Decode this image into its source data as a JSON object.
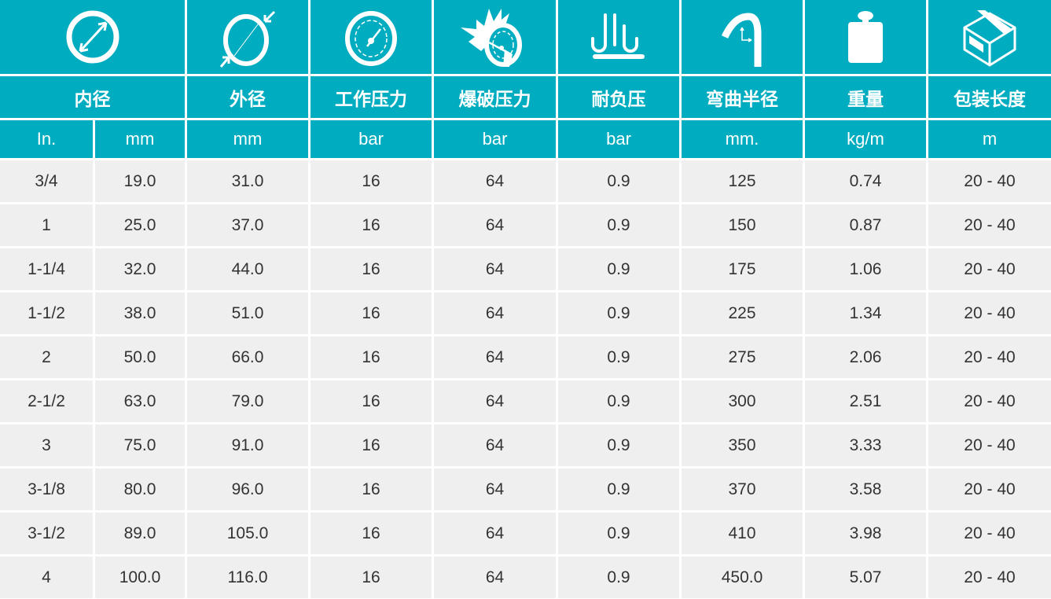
{
  "colors": {
    "header": "#00adc0",
    "row": "#efefef",
    "text": "#333333"
  },
  "icons": [
    "inner-diameter-icon",
    "outer-diameter-icon",
    "pressure-gauge-icon",
    "burst-gauge-icon",
    "vacuum-icon",
    "bend-radius-icon",
    "weight-icon",
    "package-box-icon"
  ],
  "headers": [
    "内径",
    "外径",
    "工作压力",
    "爆破压力",
    "耐负压",
    "弯曲半径",
    "重量",
    "包装长度"
  ],
  "units": [
    "In.",
    "mm",
    "mm",
    "bar",
    "bar",
    "bar",
    "mm.",
    "kg/m",
    "m"
  ],
  "rows": [
    [
      "3/4",
      "19.0",
      "31.0",
      "16",
      "64",
      "0.9",
      "125",
      "0.74",
      "20 - 40"
    ],
    [
      "1",
      "25.0",
      "37.0",
      "16",
      "64",
      "0.9",
      "150",
      "0.87",
      "20 - 40"
    ],
    [
      "1-1/4",
      "32.0",
      "44.0",
      "16",
      "64",
      "0.9",
      "175",
      "1.06",
      "20 - 40"
    ],
    [
      "1-1/2",
      "38.0",
      "51.0",
      "16",
      "64",
      "0.9",
      "225",
      "1.34",
      "20 - 40"
    ],
    [
      "2",
      "50.0",
      "66.0",
      "16",
      "64",
      "0.9",
      "275",
      "2.06",
      "20 - 40"
    ],
    [
      "2-1/2",
      "63.0",
      "79.0",
      "16",
      "64",
      "0.9",
      "300",
      "2.51",
      "20 - 40"
    ],
    [
      "3",
      "75.0",
      "91.0",
      "16",
      "64",
      "0.9",
      "350",
      "3.33",
      "20 - 40"
    ],
    [
      "3-1/8",
      "80.0",
      "96.0",
      "16",
      "64",
      "0.9",
      "370",
      "3.58",
      "20 - 40"
    ],
    [
      "3-1/2",
      "89.0",
      "105.0",
      "16",
      "64",
      "0.9",
      "410",
      "3.98",
      "20 - 40"
    ],
    [
      "4",
      "100.0",
      "116.0",
      "16",
      "64",
      "0.9",
      "450.0",
      "5.07",
      "20 - 40"
    ]
  ]
}
